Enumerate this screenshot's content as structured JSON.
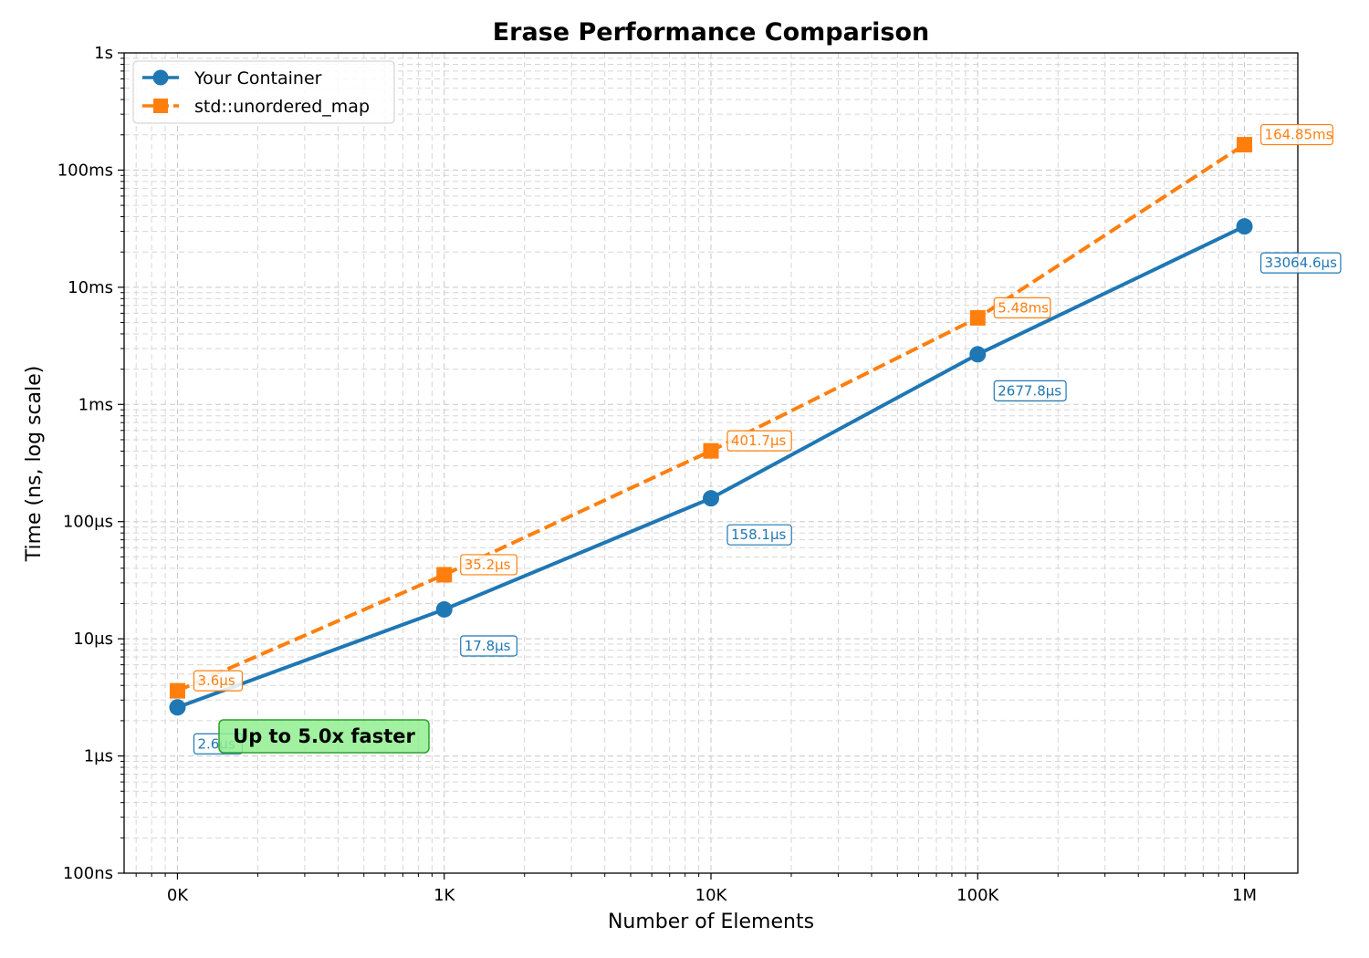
{
  "chart_data": {
    "type": "line",
    "title": "Erase Performance Comparison",
    "xlabel": "Number of Elements",
    "ylabel": "Time (ns, log scale)",
    "x_scale": "log",
    "y_scale": "log",
    "x": [
      100,
      1000,
      10000,
      100000,
      1000000
    ],
    "x_tick_labels": [
      "0K",
      "1K",
      "10K",
      "100K",
      "1M"
    ],
    "y_ticks": [
      100,
      1000,
      10000,
      100000,
      1000000,
      10000000,
      100000000,
      1000000000
    ],
    "y_tick_labels": [
      "100ns",
      "1μs",
      "10μs",
      "100μs",
      "1ms",
      "10ms",
      "100ms",
      "1s"
    ],
    "ylim": [
      100,
      1000000000
    ],
    "grid": true,
    "legend_position": "top-left",
    "series": [
      {
        "name": "Your Container",
        "color": "#1f77b4",
        "marker": "circle",
        "line_style": "solid",
        "values": [
          2600,
          17800,
          158100,
          2677800,
          33064600
        ],
        "labels": [
          "2.6μs",
          "17.8μs",
          "158.1μs",
          "2677.8μs",
          "33064.6μs"
        ]
      },
      {
        "name": "std::unordered_map",
        "color": "#ff7f0e",
        "marker": "square",
        "line_style": "dashed",
        "values": [
          3600,
          35200,
          401700,
          5480000,
          164850000
        ],
        "labels": [
          "3.6μs",
          "35.2μs",
          "401.7μs",
          "5.48ms",
          "164.85ms"
        ]
      }
    ],
    "annotation": {
      "text": "Up to 5.0x faster",
      "background": "#90ee90",
      "border": "#2ca02c"
    }
  }
}
